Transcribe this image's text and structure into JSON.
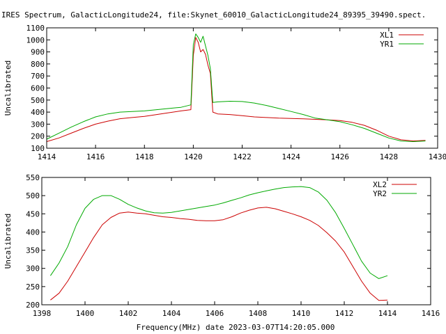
{
  "title": "IRES Spectrum, GalacticLongitude24, file:Skynet_60010_GalacticLongitude24_89395_39490.spect.",
  "bottom_xlabel": "Frequency(MHz) date 2023-03-07T14:20:05.000",
  "colors": {
    "red": "#cc0000",
    "green": "#00aa00"
  },
  "chart_data": [
    {
      "type": "line",
      "ylabel": "Uncalibrated",
      "xlim": [
        1414,
        1430
      ],
      "ylim": [
        100,
        1100
      ],
      "x_ticks": [
        1414,
        1416,
        1418,
        1420,
        1422,
        1424,
        1426,
        1428,
        1430
      ],
      "y_ticks": [
        100,
        200,
        300,
        400,
        500,
        600,
        700,
        800,
        900,
        1000,
        1100
      ],
      "legend_position": "top-right",
      "series": [
        {
          "name": "XL1",
          "color": "#cc0000",
          "x": [
            1414.0,
            1414.5,
            1415.0,
            1415.5,
            1416.0,
            1416.5,
            1417.0,
            1417.5,
            1418.0,
            1418.5,
            1419.0,
            1419.5,
            1419.9,
            1420.0,
            1420.1,
            1420.2,
            1420.3,
            1420.4,
            1420.5,
            1420.6,
            1420.7,
            1420.8,
            1421.0,
            1421.5,
            1422.0,
            1422.5,
            1423.0,
            1423.5,
            1424.0,
            1424.5,
            1425.0,
            1425.5,
            1426.0,
            1426.5,
            1427.0,
            1427.5,
            1428.0,
            1428.5,
            1429.0,
            1429.5
          ],
          "y": [
            155,
            185,
            225,
            265,
            300,
            325,
            345,
            355,
            365,
            380,
            395,
            410,
            420,
            870,
            1020,
            980,
            900,
            920,
            880,
            790,
            720,
            400,
            385,
            380,
            370,
            360,
            355,
            350,
            347,
            344,
            340,
            336,
            330,
            315,
            290,
            250,
            200,
            170,
            160,
            165
          ]
        },
        {
          "name": "YR1",
          "color": "#00aa00",
          "x": [
            1414.0,
            1414.5,
            1415.0,
            1415.5,
            1416.0,
            1416.5,
            1417.0,
            1417.5,
            1418.0,
            1418.5,
            1419.0,
            1419.5,
            1419.9,
            1420.0,
            1420.1,
            1420.2,
            1420.3,
            1420.4,
            1420.5,
            1420.6,
            1420.7,
            1420.8,
            1421.0,
            1421.5,
            1422.0,
            1422.5,
            1423.0,
            1423.5,
            1424.0,
            1424.5,
            1425.0,
            1425.5,
            1426.0,
            1426.5,
            1427.0,
            1427.5,
            1428.0,
            1428.5,
            1429.0,
            1429.5
          ],
          "y": [
            175,
            225,
            275,
            320,
            360,
            385,
            400,
            405,
            410,
            420,
            430,
            440,
            460,
            960,
            1050,
            1020,
            980,
            1030,
            950,
            870,
            760,
            480,
            485,
            490,
            488,
            475,
            455,
            430,
            405,
            380,
            350,
            335,
            320,
            295,
            265,
            225,
            185,
            160,
            155,
            160
          ]
        }
      ]
    },
    {
      "type": "line",
      "ylabel": "Uncalibrated",
      "xlim": [
        1398,
        1416
      ],
      "ylim": [
        200,
        550
      ],
      "x_ticks": [
        1398,
        1400,
        1402,
        1404,
        1406,
        1408,
        1410,
        1412,
        1414,
        1416
      ],
      "y_ticks": [
        200,
        250,
        300,
        350,
        400,
        450,
        500,
        550
      ],
      "legend_position": "top-right",
      "series": [
        {
          "name": "XL2",
          "color": "#cc0000",
          "x": [
            1398.4,
            1398.8,
            1399.2,
            1399.6,
            1400.0,
            1400.4,
            1400.8,
            1401.2,
            1401.6,
            1402.0,
            1402.4,
            1402.8,
            1403.2,
            1403.6,
            1404.0,
            1404.4,
            1404.8,
            1405.2,
            1405.6,
            1406.0,
            1406.4,
            1406.8,
            1407.2,
            1407.6,
            1408.0,
            1408.4,
            1408.8,
            1409.2,
            1409.6,
            1410.0,
            1410.4,
            1410.8,
            1411.2,
            1411.6,
            1412.0,
            1412.4,
            1412.8,
            1413.2,
            1413.6,
            1414.0
          ],
          "y": [
            213,
            232,
            265,
            305,
            345,
            385,
            420,
            440,
            452,
            455,
            452,
            450,
            446,
            442,
            440,
            437,
            435,
            432,
            431,
            431,
            434,
            442,
            452,
            460,
            466,
            468,
            464,
            457,
            450,
            442,
            432,
            418,
            398,
            375,
            345,
            305,
            265,
            232,
            212,
            213
          ]
        },
        {
          "name": "YR2",
          "color": "#00aa00",
          "x": [
            1398.4,
            1398.8,
            1399.2,
            1399.6,
            1400.0,
            1400.4,
            1400.8,
            1401.2,
            1401.6,
            1402.0,
            1402.4,
            1402.8,
            1403.2,
            1403.6,
            1404.0,
            1404.4,
            1404.8,
            1405.2,
            1405.6,
            1406.0,
            1406.4,
            1406.8,
            1407.2,
            1407.6,
            1408.0,
            1408.4,
            1408.8,
            1409.2,
            1409.6,
            1410.0,
            1410.4,
            1410.8,
            1411.2,
            1411.6,
            1412.0,
            1412.4,
            1412.8,
            1413.2,
            1413.6,
            1414.0
          ],
          "y": [
            280,
            315,
            360,
            420,
            465,
            490,
            500,
            500,
            490,
            476,
            466,
            458,
            453,
            452,
            454,
            458,
            462,
            466,
            470,
            474,
            480,
            487,
            494,
            502,
            508,
            513,
            518,
            522,
            524,
            525,
            522,
            510,
            487,
            453,
            410,
            365,
            320,
            287,
            272,
            280
          ]
        }
      ]
    }
  ]
}
